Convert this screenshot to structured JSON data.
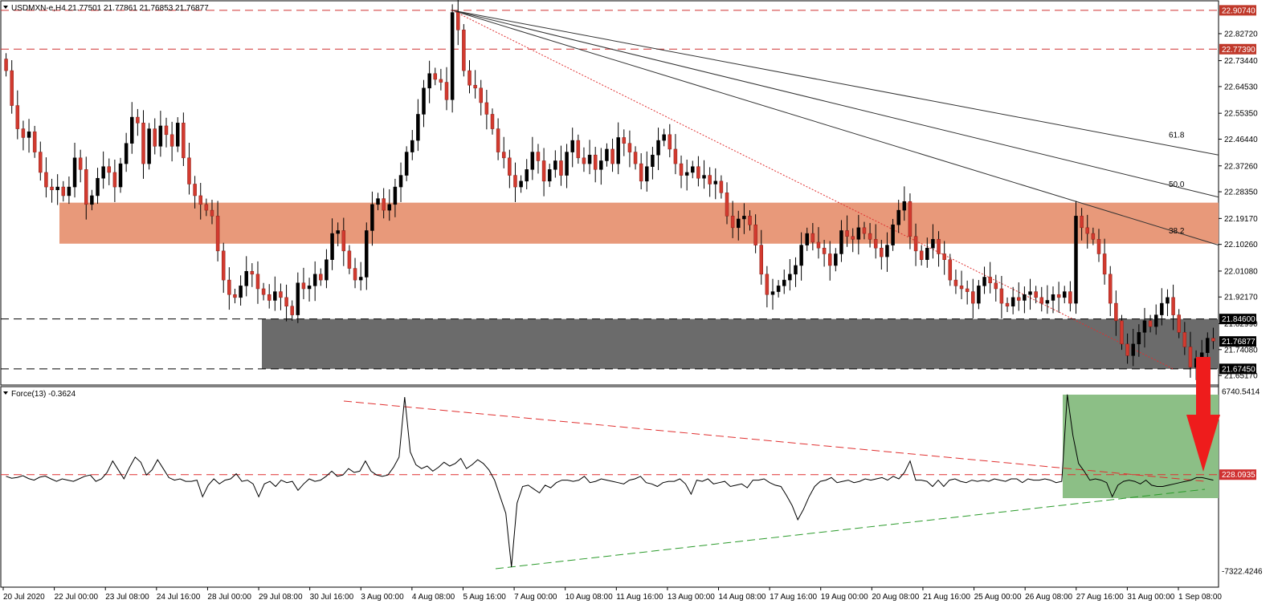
{
  "chart_data": [
    {
      "type": "candlestick",
      "symbol_header": "USDMXN-e,H4  21.77501 21.77861 21.76853 21.76877",
      "timeframe": "H4",
      "ohlc_header": {
        "open": 21.77501,
        "high": 21.77861,
        "low": 21.76853,
        "close": 21.76877
      },
      "ylim": [
        21.6217,
        22.9374
      ],
      "y_ticks": [
        22.8272,
        22.7344,
        22.6453,
        22.5535,
        22.4644,
        22.3726,
        22.2835,
        22.1917,
        22.1026,
        22.0108,
        21.9217,
        21.8299,
        21.7408,
        21.6517
      ],
      "x_ticks": [
        "20 Jul 2020",
        "22 Jul 00:00",
        "23 Jul 08:00",
        "24 Jul 16:00",
        "28 Jul 00:00",
        "29 Jul 08:00",
        "30 Jul 16:00",
        "3 Aug 00:00",
        "4 Aug 08:00",
        "5 Aug 16:00",
        "7 Aug 00:00",
        "10 Aug 08:00",
        "11 Aug 16:00",
        "13 Aug 00:00",
        "14 Aug 08:00",
        "17 Aug 16:00",
        "19 Aug 00:00",
        "20 Aug 08:00",
        "21 Aug 16:00",
        "25 Aug 00:00",
        "26 Aug 08:00",
        "27 Aug 16:00",
        "31 Aug 00:00",
        "1 Sep 08:00"
      ],
      "price_labels": [
        {
          "value": "22.90740",
          "color": "#c0392b"
        },
        {
          "value": "22.77390",
          "color": "#c0392b"
        },
        {
          "value": "21.84600",
          "color": "#000000"
        },
        {
          "value": "21.76877",
          "color": "#000000"
        },
        {
          "value": "21.67450",
          "color": "#000000"
        }
      ],
      "resistance_levels": [
        22.9074,
        22.7739
      ],
      "support_levels": [
        21.846,
        21.6745
      ],
      "resistance_zone": {
        "low": 22.105,
        "high": 22.246,
        "color": "#e8997a"
      },
      "support_zone": {
        "low": 21.6745,
        "high": 21.846,
        "color": "#6b6b6b"
      },
      "fan_origin": {
        "date": "4 Aug",
        "value": 22.9074
      },
      "fib_fan_labels": [
        "61.8",
        "50.0",
        "38.2"
      ],
      "closes": [
        22.7,
        22.58,
        22.5,
        22.47,
        22.49,
        22.42,
        22.35,
        22.3,
        22.29,
        22.3,
        22.27,
        22.3,
        22.4,
        22.36,
        22.24,
        22.27,
        22.33,
        22.37,
        22.35,
        22.3,
        22.38,
        22.45,
        22.54,
        22.52,
        22.38,
        22.5,
        22.44,
        22.51,
        22.48,
        22.44,
        22.52,
        22.4,
        22.31,
        22.27,
        22.24,
        22.22,
        22.2,
        22.08,
        21.98,
        21.93,
        21.92,
        21.96,
        22.01,
        22.0,
        21.95,
        21.93,
        21.91,
        21.94,
        21.92,
        21.89,
        21.86,
        21.97,
        21.95,
        21.96,
        22.0,
        21.98,
        22.05,
        22.14,
        22.15,
        22.08,
        22.02,
        21.98,
        21.99,
        22.15,
        22.24,
        22.26,
        22.22,
        22.24,
        22.3,
        22.34,
        22.42,
        22.46,
        22.55,
        22.64,
        22.69,
        22.67,
        22.66,
        22.6,
        22.9,
        22.84,
        22.7,
        22.65,
        22.64,
        22.59,
        22.55,
        22.5,
        22.42,
        22.4,
        22.34,
        22.3,
        22.32,
        22.36,
        22.42,
        22.39,
        22.32,
        22.36,
        22.39,
        22.34,
        22.42,
        22.46,
        22.4,
        22.38,
        22.41,
        22.36,
        22.39,
        22.43,
        22.38,
        22.47,
        22.45,
        22.42,
        22.38,
        22.32,
        22.37,
        22.41,
        22.46,
        22.48,
        22.43,
        22.38,
        22.34,
        22.35,
        22.37,
        22.33,
        22.34,
        22.31,
        22.32,
        22.28,
        22.2,
        22.16,
        22.19,
        22.2,
        22.17,
        22.1,
        22.0,
        21.93,
        21.94,
        21.96,
        21.98,
        22.0,
        22.03,
        22.1,
        22.14,
        22.11,
        22.09,
        22.07,
        22.03,
        22.07,
        22.15,
        22.13,
        22.12,
        22.16,
        22.14,
        22.12,
        22.09,
        22.06,
        22.1,
        22.17,
        22.22,
        22.25,
        22.13,
        22.08,
        22.05,
        22.09,
        22.12,
        22.07,
        22.05,
        21.98,
        21.96,
        21.95,
        21.94,
        21.9,
        21.96,
        21.99,
        21.97,
        21.95,
        21.9,
        21.89,
        21.92,
        21.91,
        21.93,
        21.94,
        21.92,
        21.9,
        21.91,
        21.93,
        21.92,
        21.94,
        21.9,
        22.2,
        22.16,
        22.14,
        22.12,
        22.07,
        22.0,
        21.9,
        21.84,
        21.76,
        21.72,
        21.76,
        21.8,
        21.84,
        21.82,
        21.86,
        21.9,
        21.92,
        21.86,
        21.8,
        21.75,
        21.68,
        21.71,
        21.73,
        21.78,
        21.77
      ]
    },
    {
      "type": "line",
      "title": "Force(13) -0.3624",
      "ylim": [
        -7322.4246,
        6740.5414
      ],
      "y_ticks": [
        6740.5414,
        -7322.4246
      ],
      "level_label": "228.0935",
      "level_value": 228.0935,
      "zone_color": "#8cbf86",
      "arrow_color": "#ee1c1c",
      "values": [
        100,
        -50,
        10,
        150,
        -80,
        -200,
        30,
        120,
        -100,
        -300,
        -100,
        -200,
        -300,
        -100,
        100,
        200,
        -300,
        -100,
        400,
        1300,
        600,
        -100,
        800,
        1600,
        1200,
        200,
        600,
        1400,
        700,
        0,
        -200,
        -100,
        -300,
        -300,
        -200,
        -1500,
        -600,
        -100,
        -500,
        -200,
        -100,
        300,
        -300,
        -200,
        -500,
        -1500,
        -500,
        -300,
        -700,
        -200,
        -400,
        -300,
        -1000,
        -500,
        -100,
        -300,
        -200,
        100,
        500,
        100,
        200,
        700,
        400,
        500,
        1300,
        500,
        200,
        100,
        200,
        800,
        1600,
        6300,
        2000,
        1000,
        700,
        900,
        500,
        800,
        1200,
        900,
        1100,
        1500,
        700,
        1000,
        1400,
        1100,
        600,
        -200,
        -1500,
        -2800,
        -7000,
        -2000,
        -700,
        -600,
        -900,
        -1200,
        -600,
        -800,
        -400,
        -200,
        -200,
        -300,
        -200,
        100,
        -400,
        -300,
        -100,
        -200,
        -300,
        -400,
        -500,
        -200,
        -100,
        100,
        -400,
        -500,
        -700,
        -400,
        -300,
        -300,
        -100,
        -500,
        -1300,
        -200,
        -300,
        -100,
        -500,
        -400,
        -300,
        -700,
        -600,
        -500,
        -800,
        -200,
        -200,
        -100,
        -400,
        -600,
        -700,
        -1400,
        -2200,
        -3300,
        -2500,
        -1500,
        -700,
        -300,
        -200,
        0,
        -400,
        -300,
        -200,
        -400,
        -300,
        -100,
        -200,
        -100,
        0,
        -200,
        100,
        -100,
        400,
        1300,
        -200,
        -200,
        -300,
        -700,
        -200,
        -700,
        -200,
        -100,
        -300,
        -400,
        -200,
        -300,
        -200,
        -300,
        -100,
        -200,
        -300,
        -100,
        -100,
        -400,
        -100,
        -200,
        -200,
        -100,
        -200,
        -400,
        -300,
        6500,
        3300,
        1100,
        500,
        -200,
        -100,
        -200,
        -400,
        -1500,
        -600,
        -300,
        -200,
        -300,
        -500,
        -200,
        -600,
        -700,
        -700,
        -600,
        -500,
        -400,
        -300,
        -200,
        0,
        0,
        -100,
        -200
      ]
    }
  ]
}
